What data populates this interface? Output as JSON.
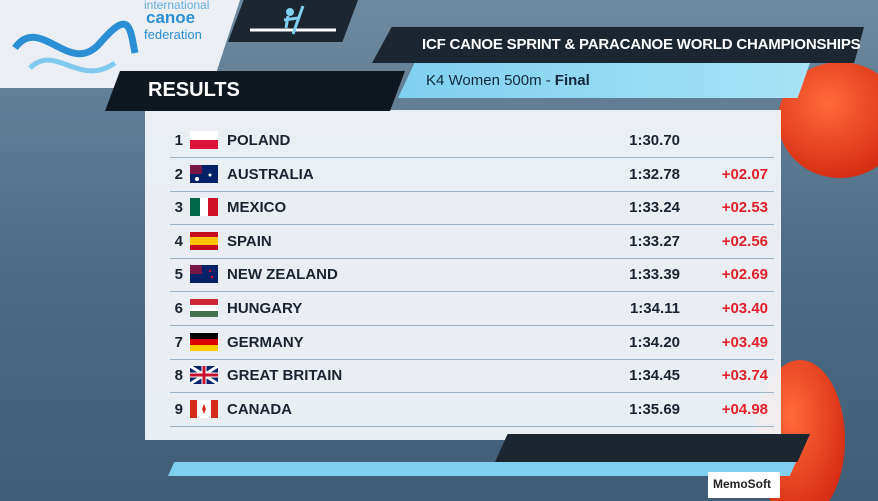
{
  "logo": {
    "line1": "international",
    "line2": "canoe",
    "line3": "federation"
  },
  "header": {
    "title": "ICF CANOE SPRINT & PARACANOE WORLD CHAMPIONSHIPS",
    "event": "K4 Women 500m -",
    "phase": "Final",
    "section": "RESULTS"
  },
  "table": {
    "rows": [
      {
        "rank": 1,
        "country": "POLAND",
        "time": "1:30.70"
      },
      {
        "rank": 2,
        "country": "AUSTRALIA",
        "time": "1:32.78",
        "diff": "+02.07"
      },
      {
        "rank": 3,
        "country": "MEXICO",
        "time": "1:33.24",
        "diff": "+02.53"
      },
      {
        "rank": 4,
        "country": "SPAIN",
        "time": "1:33.27",
        "diff": "+02.56"
      },
      {
        "rank": 5,
        "country": "NEW ZEALAND",
        "time": "1:33.39",
        "diff": "+02.69"
      },
      {
        "rank": 6,
        "country": "HUNGARY",
        "time": "1:34.11",
        "diff": "+03.40"
      },
      {
        "rank": 7,
        "country": "GERMANY",
        "time": "1:34.20",
        "diff": "+03.49"
      },
      {
        "rank": 8,
        "country": "GREAT BRITAIN",
        "time": "1:34.45",
        "diff": "+03.74"
      },
      {
        "rank": 9,
        "country": "CANADA",
        "time": "1:35.69",
        "diff": "+04.98"
      }
    ]
  },
  "footer": {
    "sponsor": "MemoSoft"
  }
}
